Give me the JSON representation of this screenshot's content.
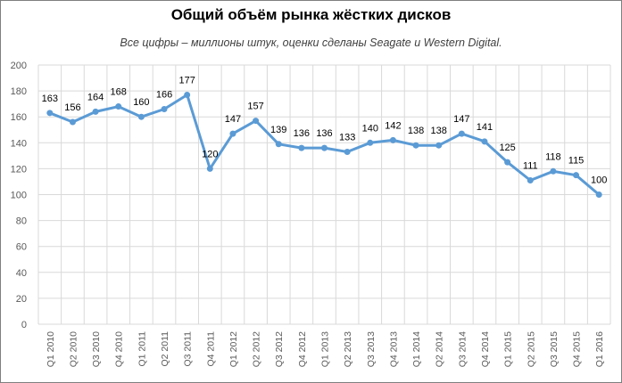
{
  "chart_data": {
    "type": "line",
    "title": "Общий объём рынка жёстких дисков",
    "subtitle": "Все цифры – миллионы штук, оценки сделаны Seagate и Western Digital.",
    "xlabel": "",
    "ylabel": "",
    "ylim": [
      0,
      200
    ],
    "yticks": [
      0,
      20,
      40,
      60,
      80,
      100,
      120,
      140,
      160,
      180,
      200
    ],
    "grid": true,
    "legend": "none",
    "line_color": "#5b9bd5",
    "categories": [
      "Q1 2010",
      "Q2 2010",
      "Q3 2010",
      "Q4 2010",
      "Q1 2011",
      "Q2 2011",
      "Q3 2011",
      "Q4 2011",
      "Q1 2012",
      "Q2 2012",
      "Q3 2012",
      "Q4 2012",
      "Q1 2013",
      "Q2 2013",
      "Q3 2013",
      "Q4 2013",
      "Q1 2014",
      "Q2 2014",
      "Q3 2014",
      "Q4 2014",
      "Q1 2015",
      "Q2 2015",
      "Q3 2015",
      "Q4 2015",
      "Q1 2016"
    ],
    "values": [
      163,
      156,
      164,
      168,
      160,
      166,
      177,
      120,
      147,
      157,
      139,
      136,
      136,
      133,
      140,
      142,
      138,
      138,
      147,
      141,
      125,
      111,
      118,
      115,
      100
    ]
  }
}
